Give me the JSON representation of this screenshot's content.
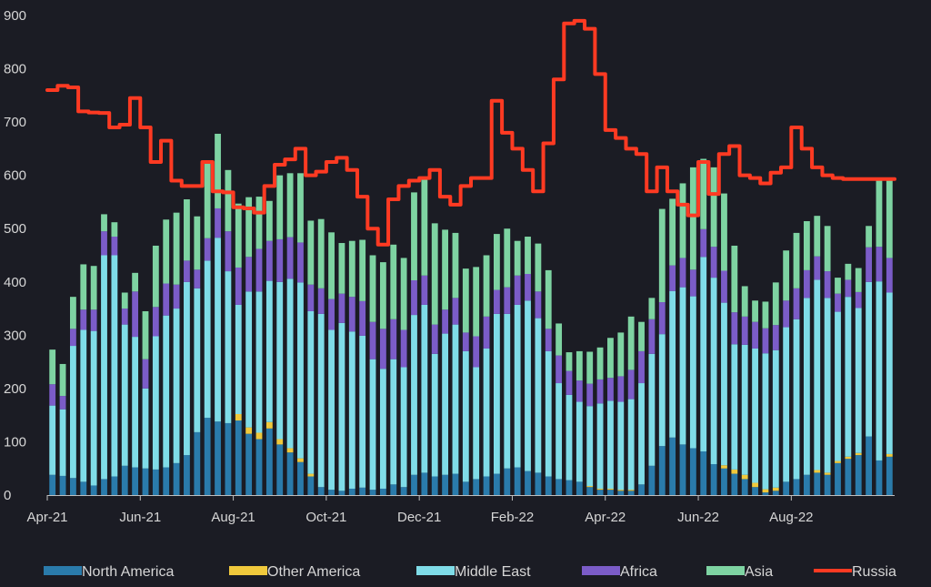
{
  "chart_data": {
    "type": "bar",
    "stacked": true,
    "title": "",
    "xlabel": "",
    "ylabel": "",
    "ylim": [
      0,
      900
    ],
    "y_ticks": [
      0,
      100,
      200,
      300,
      400,
      500,
      600,
      700,
      800,
      900
    ],
    "x_tick_labels": [
      "Apr-21",
      "Jun-21",
      "Aug-21",
      "Oct-21",
      "Dec-21",
      "Feb-22",
      "Apr-22",
      "Jun-22",
      "Aug-22"
    ],
    "x_tick_weeks": [
      0,
      9,
      18,
      27,
      36,
      45,
      54,
      63,
      72
    ],
    "grid": false,
    "legend_position": "bottom",
    "series": [
      {
        "name": "North America",
        "color": "#2a7bab",
        "values": [
          38,
          36,
          32,
          25,
          18,
          30,
          35,
          55,
          52,
          50,
          48,
          52,
          60,
          75,
          118,
          145,
          138,
          135,
          140,
          115,
          105,
          125,
          95,
          80,
          62,
          35,
          15,
          10,
          8,
          12,
          14,
          10,
          12,
          20,
          15,
          38,
          42,
          35,
          38,
          40,
          25,
          30,
          35,
          40,
          50,
          52,
          45,
          42,
          35,
          30,
          28,
          25,
          15,
          10,
          10,
          8,
          8,
          20,
          55,
          92,
          108,
          95,
          88,
          82,
          58,
          50,
          40,
          30,
          15,
          5,
          8,
          25,
          30,
          38,
          42,
          38,
          60,
          68,
          75,
          110,
          65,
          72
        ]
      },
      {
        "name": "Other America",
        "color": "#f0c93c",
        "values": [
          0,
          0,
          0,
          0,
          0,
          0,
          0,
          0,
          0,
          0,
          0,
          0,
          0,
          0,
          0,
          0,
          0,
          0,
          12,
          12,
          12,
          12,
          10,
          8,
          7,
          5,
          0,
          0,
          0,
          0,
          0,
          0,
          0,
          0,
          0,
          0,
          0,
          0,
          0,
          0,
          0,
          0,
          0,
          0,
          0,
          0,
          0,
          0,
          0,
          0,
          0,
          0,
          2,
          2,
          2,
          2,
          2,
          0,
          0,
          0,
          0,
          0,
          0,
          0,
          0,
          6,
          8,
          8,
          8,
          6,
          6,
          0,
          0,
          0,
          5,
          4,
          4,
          4,
          4,
          0,
          0,
          5
        ]
      },
      {
        "name": "Middle East",
        "color": "#7fdce8",
        "values": [
          130,
          125,
          248,
          285,
          290,
          420,
          415,
          265,
          245,
          150,
          250,
          285,
          290,
          325,
          270,
          295,
          345,
          285,
          205,
          255,
          265,
          265,
          295,
          318,
          330,
          305,
          325,
          300,
          315,
          295,
          285,
          245,
          225,
          235,
          225,
          300,
          315,
          230,
          265,
          280,
          245,
          210,
          240,
          300,
          290,
          305,
          320,
          290,
          235,
          180,
          160,
          150,
          150,
          160,
          165,
          165,
          170,
          190,
          210,
          210,
          275,
          295,
          285,
          365,
          350,
          305,
          235,
          244,
          252,
          255,
          258,
          290,
          300,
          332,
          357,
          328,
          280,
          300,
          272,
          290,
          336,
          303
        ]
      },
      {
        "name": "Africa",
        "color": "#7b5cc8",
        "values": [
          40,
          25,
          32,
          38,
          40,
          45,
          35,
          30,
          85,
          55,
          55,
          60,
          45,
          40,
          35,
          42,
          55,
          75,
          70,
          65,
          80,
          75,
          80,
          78,
          75,
          50,
          48,
          58,
          55,
          65,
          65,
          70,
          75,
          75,
          70,
          65,
          55,
          55,
          45,
          50,
          35,
          58,
          60,
          45,
          50,
          55,
          50,
          50,
          42,
          52,
          45,
          40,
          42,
          45,
          43,
          48,
          55,
          60,
          65,
          60,
          48,
          55,
          50,
          52,
          58,
          60,
          60,
          53,
          50,
          47,
          47,
          50,
          58,
          52,
          44,
          50,
          34,
          32,
          30,
          65,
          65,
          65
        ]
      },
      {
        "name": "Asia",
        "color": "#7ed3a2",
        "values": [
          65,
          60,
          60,
          85,
          82,
          32,
          27,
          30,
          35,
          90,
          115,
          120,
          135,
          115,
          100,
          140,
          140,
          115,
          120,
          112,
          98,
          75,
          120,
          120,
          130,
          120,
          130,
          125,
          95,
          105,
          115,
          125,
          125,
          140,
          135,
          165,
          180,
          190,
          150,
          122,
          120,
          130,
          115,
          105,
          110,
          65,
          70,
          90,
          110,
          60,
          35,
          55,
          60,
          60,
          75,
          82,
          100,
          55,
          40,
          175,
          125,
          140,
          192,
          132,
          149,
          145,
          125,
          57,
          40,
          50,
          80,
          94,
          104,
          92,
          76,
          85,
          30,
          30,
          45,
          40,
          125,
          145
        ]
      },
      {
        "name": "Russia",
        "color": "#ff3a22",
        "type": "line",
        "values": [
          760,
          768,
          765,
          720,
          718,
          717,
          690,
          695,
          745,
          690,
          625,
          665,
          590,
          580,
          580,
          625,
          570,
          568,
          540,
          538,
          530,
          580,
          620,
          630,
          650,
          600,
          607,
          625,
          633,
          610,
          560,
          500,
          470,
          555,
          580,
          590,
          595,
          610,
          560,
          545,
          580,
          595,
          595,
          740,
          680,
          650,
          610,
          570,
          660,
          780,
          885,
          890,
          875,
          790,
          685,
          670,
          650,
          640,
          570,
          615,
          570,
          545,
          525,
          625,
          565,
          640,
          655,
          600,
          595,
          585,
          605,
          615,
          690,
          650,
          615,
          600,
          595,
          593,
          593,
          593,
          593,
          593
        ]
      }
    ]
  }
}
